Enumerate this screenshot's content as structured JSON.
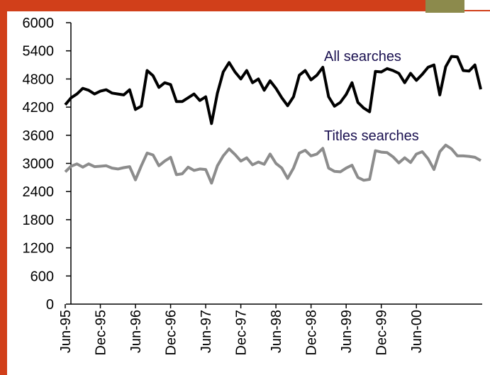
{
  "chart_data": {
    "type": "line",
    "categories": [
      "Jun-95",
      null,
      null,
      null,
      null,
      null,
      "Dec-95",
      null,
      null,
      null,
      null,
      null,
      "Jun-96",
      null,
      null,
      null,
      null,
      null,
      "Dec-96",
      null,
      null,
      null,
      null,
      null,
      "Jun-97",
      null,
      null,
      null,
      null,
      null,
      "Dec-97",
      null,
      null,
      null,
      null,
      null,
      "Jun-98",
      null,
      null,
      null,
      null,
      null,
      "Dec-98",
      null,
      null,
      null,
      null,
      null,
      "Jun-99",
      null,
      null,
      null,
      null,
      null,
      "Dec-99",
      null,
      null,
      null,
      null,
      null,
      "Jun-00",
      null,
      null,
      null,
      null,
      null,
      null,
      null,
      null,
      null,
      null,
      null
    ],
    "series": [
      {
        "name": "All searches",
        "color": "#000000",
        "label_color": "#1a1050",
        "values": [
          4250,
          4400,
          4480,
          4600,
          4560,
          4480,
          4540,
          4570,
          4500,
          4480,
          4460,
          4570,
          4150,
          4220,
          4980,
          4870,
          4620,
          4720,
          4680,
          4320,
          4320,
          4400,
          4480,
          4340,
          4420,
          3850,
          4500,
          4950,
          5150,
          4950,
          4800,
          4980,
          4720,
          4800,
          4560,
          4760,
          4600,
          4400,
          4230,
          4420,
          4880,
          4980,
          4780,
          4880,
          5050,
          4420,
          4220,
          4300,
          4470,
          4720,
          4300,
          4180,
          4100,
          4960,
          4950,
          5020,
          4980,
          4920,
          4720,
          4920,
          4770,
          4900,
          5050,
          5100,
          4460,
          5060,
          5280,
          5270,
          4980,
          4970,
          5100,
          4580
        ]
      },
      {
        "name": "Titles searches",
        "color": "#8c8c8c",
        "label_color": "#1a1050",
        "values": [
          2820,
          2940,
          2990,
          2920,
          2990,
          2930,
          2940,
          2950,
          2900,
          2880,
          2910,
          2930,
          2650,
          2950,
          3220,
          3180,
          2950,
          3050,
          3130,
          2760,
          2780,
          2920,
          2850,
          2880,
          2870,
          2580,
          2950,
          3160,
          3310,
          3190,
          3050,
          3120,
          2970,
          3030,
          2980,
          3200,
          3000,
          2900,
          2680,
          2900,
          3220,
          3280,
          3160,
          3200,
          3320,
          2900,
          2830,
          2820,
          2900,
          2960,
          2700,
          2640,
          2660,
          3270,
          3240,
          3230,
          3140,
          3010,
          3120,
          3020,
          3200,
          3250,
          3100,
          2870,
          3250,
          3390,
          3310,
          3160,
          3160,
          3150,
          3130,
          3060
        ]
      }
    ],
    "ylim": [
      0,
      6000
    ],
    "yticks": [
      0,
      600,
      1200,
      1800,
      2400,
      3000,
      3600,
      4200,
      4800,
      5400,
      6000
    ]
  }
}
